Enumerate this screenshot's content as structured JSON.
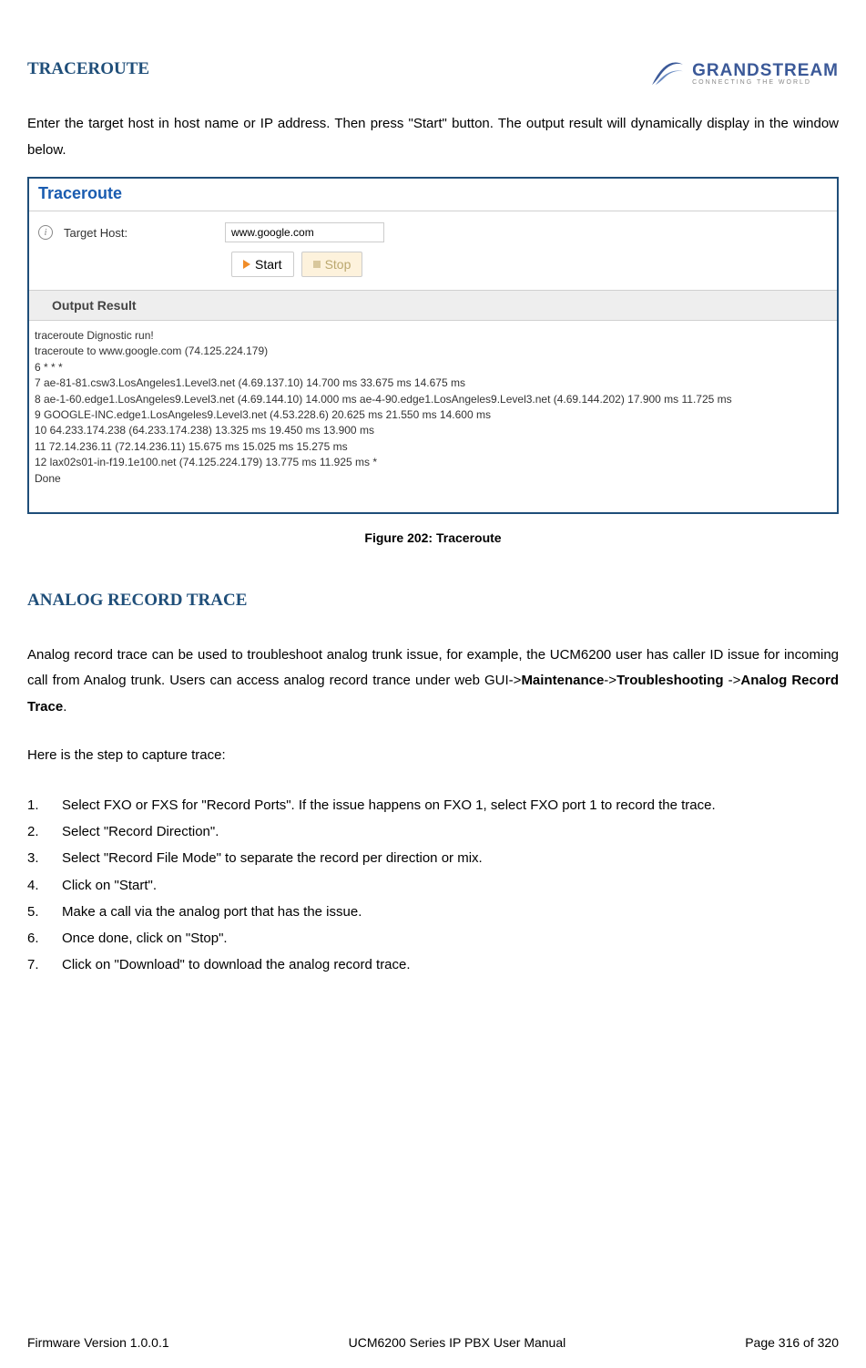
{
  "header": {
    "logo_main": "GRANDSTREAM",
    "logo_sub": "CONNECTING THE WORLD"
  },
  "section1": {
    "title": "TRACEROUTE",
    "intro": "Enter the target host in host name or IP address. Then press \"Start\" button. The output result will dynamically display in the window below."
  },
  "panel": {
    "title": "Traceroute",
    "target_label": "Target Host:",
    "target_value": "www.google.com",
    "start_label": "Start",
    "stop_label": "Stop",
    "output_header": "Output Result",
    "output_lines": [
      "traceroute Dignostic run!",
      "traceroute to www.google.com (74.125.224.179)",
      "6 * * *",
      "7 ae-81-81.csw3.LosAngeles1.Level3.net (4.69.137.10) 14.700 ms 33.675 ms 14.675 ms",
      "8 ae-1-60.edge1.LosAngeles9.Level3.net (4.69.144.10) 14.000 ms ae-4-90.edge1.LosAngeles9.Level3.net (4.69.144.202) 17.900 ms 11.725 ms",
      "9 GOOGLE-INC.edge1.LosAngeles9.Level3.net (4.53.228.6) 20.625 ms 21.550 ms 14.600 ms",
      "10 64.233.174.238 (64.233.174.238) 13.325 ms 19.450 ms 13.900 ms",
      "11 72.14.236.11 (72.14.236.11) 15.675 ms 15.025 ms 15.275 ms",
      "12 lax02s01-in-f19.1e100.net (74.125.224.179) 13.775 ms 11.925 ms *",
      "Done"
    ]
  },
  "figure_caption": "Figure 202: Traceroute",
  "section2": {
    "title": "ANALOG RECORD TRACE",
    "para_before": "Analog record trace can be used to troubleshoot analog trunk issue, for example, the UCM6200 user has caller ID issue for incoming call from Analog trunk. Users can access analog record trance under web GUI->",
    "bold1": "Maintenance",
    "mid1": "->",
    "bold2": "Troubleshooting ",
    "mid2": "->",
    "bold3": "Analog Record Trace",
    "tail": ".",
    "steps_intro": "Here is the step to capture trace:",
    "steps": [
      "Select FXO or FXS for \"Record Ports\". If the issue happens on FXO 1, select FXO port 1 to record the trace.",
      "Select \"Record Direction\".",
      "Select \"Record File Mode\" to separate the record per direction or mix.",
      "Click on \"Start\".",
      "Make a call via the analog port that has the issue.",
      "Once done, click on \"Stop\".",
      "Click on \"Download\" to download the analog record trace."
    ]
  },
  "footer": {
    "left": "Firmware Version 1.0.0.1",
    "center": "UCM6200 Series IP PBX User Manual",
    "right": "Page 316 of 320"
  },
  "colors": {
    "heading": "#1f4e79",
    "panel_border": "#1f4e79",
    "panel_title": "#1a5cb0",
    "start_triangle": "#f08c28",
    "stop_bg": "#fdf2dc",
    "output_bg": "#eeeeee"
  }
}
